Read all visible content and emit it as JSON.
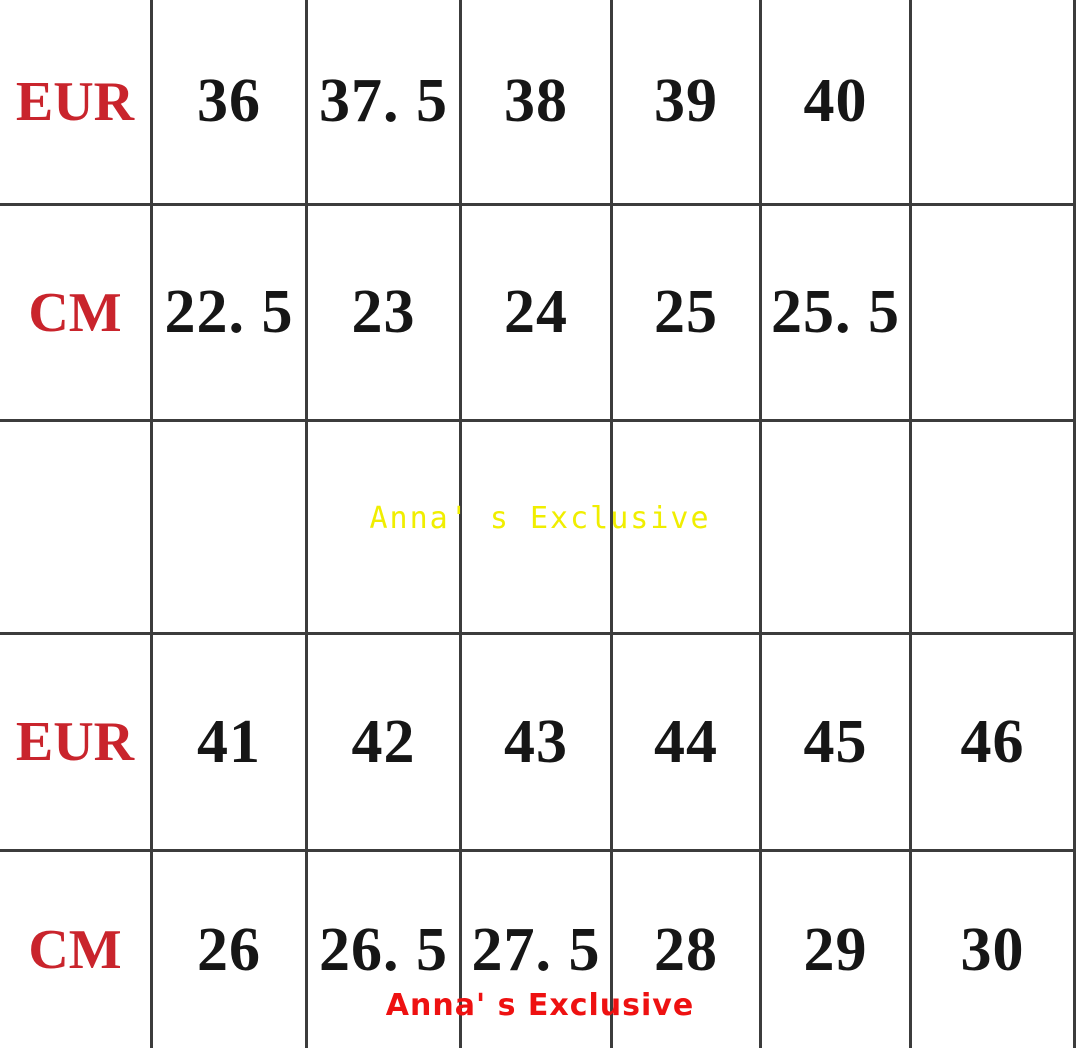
{
  "style": {
    "background": "#ffffff",
    "grid_line_color": "#3c3c3c",
    "row_header_color": "#c9242c",
    "number_color": "#161616",
    "watermark_middle_color": "#f0ee00",
    "watermark_bottom_color": "#ee1111"
  },
  "watermarks": {
    "middle": {
      "text": "Anna' s Exclusive",
      "color": "#f0ee00"
    },
    "bottom": {
      "text": "Anna' s Exclusive",
      "color": "#ee1111"
    }
  },
  "table": {
    "rows": [
      {
        "cells": [
          "EUR",
          "36",
          "37. 5",
          "38",
          "39",
          "40",
          ""
        ]
      },
      {
        "cells": [
          "CM",
          "22. 5",
          "23",
          "24",
          "25",
          "25. 5",
          ""
        ]
      },
      {
        "cells": [
          "",
          "",
          "",
          "",
          "",
          "",
          ""
        ]
      },
      {
        "cells": [
          "EUR",
          "41",
          "42",
          "43",
          "44",
          "45",
          "46"
        ]
      },
      {
        "cells": [
          "CM",
          "26",
          "26. 5",
          "27. 5",
          "28",
          "29",
          "30"
        ]
      }
    ]
  },
  "chart_data": {
    "type": "table",
    "rows": [
      [
        "EUR",
        "36",
        "37.5",
        "38",
        "39",
        "40",
        ""
      ],
      [
        "CM",
        "22.5",
        "23",
        "24",
        "25",
        "25.5",
        ""
      ],
      [
        "",
        "",
        "",
        "",
        "",
        "",
        ""
      ],
      [
        "EUR",
        "41",
        "42",
        "43",
        "44",
        "45",
        "46"
      ],
      [
        "CM",
        "26",
        "26.5",
        "27.5",
        "28",
        "29",
        "30"
      ]
    ],
    "eur_sizes": [
      36,
      37.5,
      38,
      39,
      40,
      41,
      42,
      43,
      44,
      45,
      46
    ],
    "cm_lengths": [
      22.5,
      23,
      24,
      25,
      25.5,
      26,
      26.5,
      27.5,
      28,
      29,
      30
    ]
  }
}
